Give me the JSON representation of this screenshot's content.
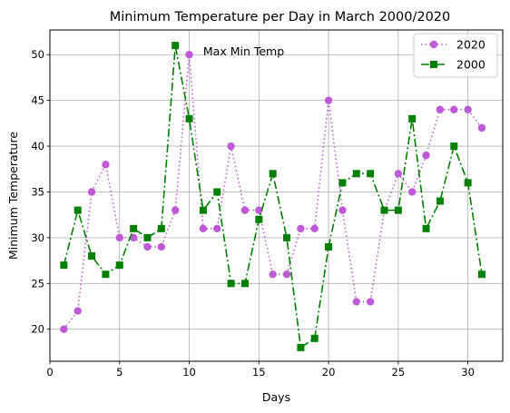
{
  "chart_data": {
    "type": "line",
    "title": "Minimum Temperature per Day in March 2000/2020",
    "xlabel": "Days",
    "ylabel": "Minimum Temperature",
    "xlim": [
      0,
      32.5
    ],
    "ylim": [
      16.5,
      52.7
    ],
    "xticks": [
      0,
      5,
      10,
      15,
      20,
      25,
      30
    ],
    "yticks": [
      20,
      25,
      30,
      35,
      40,
      45,
      50
    ],
    "grid": true,
    "legend_position": "top-right",
    "annotation": {
      "text": "Max Min Temp",
      "x": 11.0,
      "y": 50.3
    },
    "x": [
      1,
      2,
      3,
      4,
      5,
      6,
      7,
      8,
      9,
      10,
      11,
      12,
      13,
      14,
      15,
      16,
      17,
      18,
      19,
      20,
      21,
      22,
      23,
      24,
      25,
      26,
      27,
      28,
      29,
      30,
      31
    ],
    "series": [
      {
        "name": "2020",
        "color": "#BF5AD6",
        "linestyle": "dotted",
        "marker": "circle",
        "values": [
          20,
          22,
          35,
          38,
          30,
          30,
          29,
          29,
          33,
          50,
          31,
          31,
          40,
          33,
          33,
          26,
          26,
          31,
          31,
          45,
          33,
          23,
          23,
          33,
          37,
          35,
          39,
          44,
          44,
          44,
          42
        ]
      },
      {
        "name": "2000",
        "color": "#007F00",
        "linestyle": "dashdot",
        "marker": "square",
        "values": [
          27,
          33,
          28,
          26,
          27,
          31,
          30,
          31,
          51,
          43,
          33,
          35,
          25,
          25,
          32,
          37,
          30,
          18,
          19,
          29,
          36,
          37,
          37,
          33,
          33,
          43,
          31,
          34,
          40,
          36,
          26
        ]
      }
    ]
  }
}
